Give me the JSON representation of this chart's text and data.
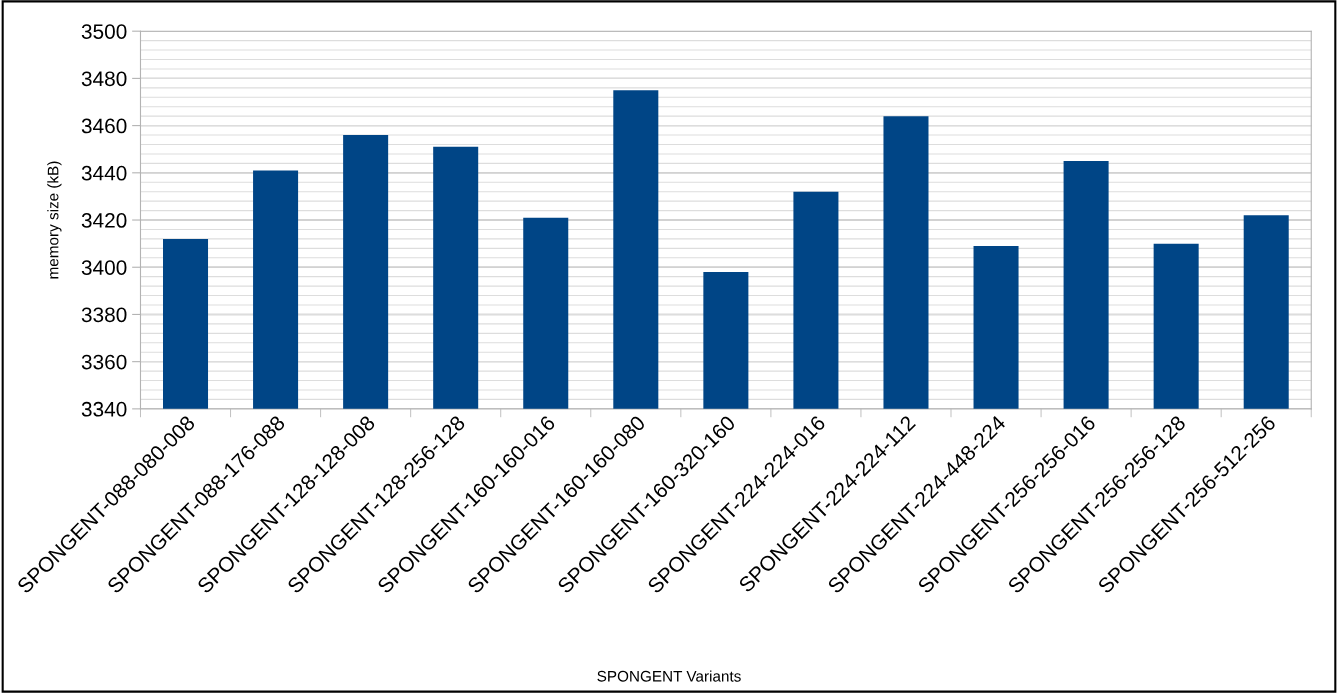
{
  "chart_data": {
    "type": "bar",
    "xlabel": "SPONGENT Variants",
    "ylabel": "memory size (kB)",
    "categories": [
      "SPONGENT-088-080-008",
      "SPONGENT-088-176-088",
      "SPONGENT-128-128-008",
      "SPONGENT-128-256-128",
      "SPONGENT-160-160-016",
      "SPONGENT-160-160-080",
      "SPONGENT-160-320-160",
      "SPONGENT-224-224-016",
      "SPONGENT-224-224-112",
      "SPONGENT-224-448-224",
      "SPONGENT-256-256-016",
      "SPONGENT-256-256-128",
      "SPONGENT-256-512-256"
    ],
    "values": [
      3412,
      3441,
      3456,
      3451,
      3421,
      3475,
      3398,
      3432,
      3464,
      3409,
      3445,
      3410,
      3422
    ],
    "color": "#004586",
    "ylim": [
      3340,
      3500
    ],
    "yticks": [
      3340,
      3360,
      3380,
      3400,
      3420,
      3440,
      3460,
      3480,
      3500
    ],
    "grid": "y",
    "legend": false
  }
}
